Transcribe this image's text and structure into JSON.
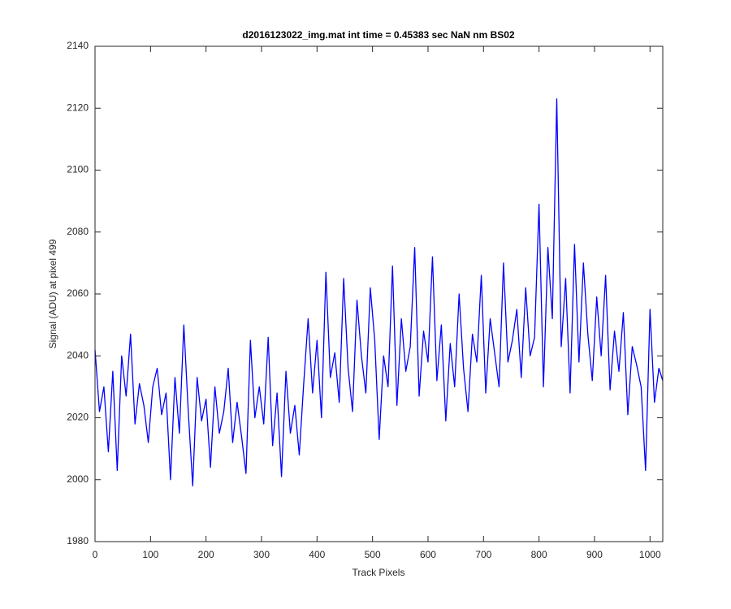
{
  "chart_data": {
    "type": "line",
    "title": "d2016123022_img.mat int time = 0.45383 sec  NaN nm BS02",
    "xlabel": "Track Pixels",
    "ylabel": "Signal (ADU) at pixel 499",
    "x": [
      0,
      8,
      16,
      24,
      32,
      40,
      48,
      56,
      64,
      72,
      80,
      88,
      96,
      104,
      112,
      120,
      128,
      136,
      144,
      152,
      160,
      168,
      176,
      184,
      192,
      200,
      208,
      216,
      224,
      232,
      240,
      248,
      256,
      264,
      272,
      280,
      288,
      296,
      304,
      312,
      320,
      328,
      336,
      344,
      352,
      360,
      368,
      376,
      384,
      392,
      400,
      408,
      416,
      424,
      432,
      440,
      448,
      456,
      464,
      472,
      480,
      488,
      496,
      504,
      512,
      520,
      528,
      536,
      544,
      552,
      560,
      568,
      576,
      584,
      592,
      600,
      608,
      616,
      624,
      632,
      640,
      648,
      656,
      664,
      672,
      680,
      688,
      696,
      704,
      712,
      720,
      728,
      736,
      744,
      752,
      760,
      768,
      776,
      784,
      792,
      800,
      808,
      816,
      824,
      832,
      840,
      848,
      856,
      864,
      872,
      880,
      888,
      896,
      904,
      912,
      920,
      928,
      936,
      944,
      952,
      960,
      968,
      976,
      984,
      992,
      1000,
      1008,
      1016,
      1023
    ],
    "series": [
      {
        "color": "#0000ff",
        "values": [
          2042,
          2022,
          2030,
          2009,
          2035,
          2003,
          2040,
          2027,
          2047,
          2018,
          2031,
          2024,
          2012,
          2030,
          2036,
          2021,
          2028,
          2000,
          2033,
          2015,
          2050,
          2022,
          1998,
          2033,
          2019,
          2026,
          2004,
          2030,
          2015,
          2022,
          2036,
          2012,
          2025,
          2014,
          2002,
          2045,
          2020,
          2030,
          2018,
          2046,
          2011,
          2028,
          2001,
          2035,
          2015,
          2024,
          2008,
          2031,
          2052,
          2028,
          2045,
          2020,
          2067,
          2033,
          2041,
          2025,
          2065,
          2036,
          2022,
          2058,
          2040,
          2028,
          2062,
          2045,
          2013,
          2040,
          2030,
          2069,
          2024,
          2052,
          2035,
          2043,
          2075,
          2027,
          2048,
          2038,
          2072,
          2032,
          2050,
          2019,
          2044,
          2030,
          2060,
          2036,
          2022,
          2047,
          2038,
          2066,
          2028,
          2052,
          2041,
          2030,
          2070,
          2038,
          2045,
          2055,
          2033,
          2062,
          2040,
          2046,
          2089,
          2030,
          2075,
          2052,
          2123,
          2043,
          2065,
          2028,
          2076,
          2038,
          2070,
          2047,
          2032,
          2059,
          2040,
          2066,
          2029,
          2048,
          2035,
          2054,
          2021,
          2043,
          2037,
          2030,
          2003,
          2055,
          2025,
          2036,
          2032
        ]
      }
    ],
    "xlim": [
      0,
      1023
    ],
    "xticks": [
      0,
      100,
      200,
      300,
      400,
      500,
      600,
      700,
      800,
      900,
      1000
    ],
    "ylim": [
      1980,
      2140
    ],
    "yticks": [
      1980,
      2000,
      2020,
      2040,
      2060,
      2080,
      2100,
      2120,
      2140
    ],
    "grid": false
  }
}
